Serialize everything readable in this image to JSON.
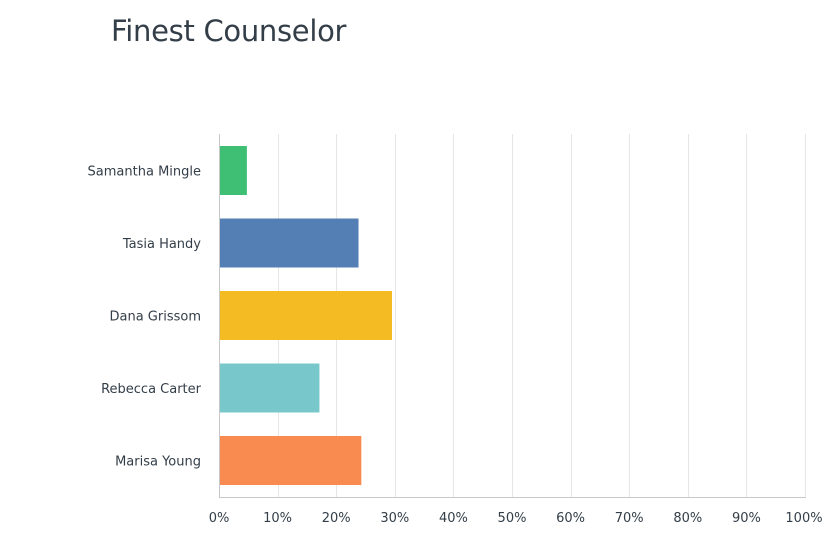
{
  "chart_data": {
    "type": "bar",
    "orientation": "horizontal",
    "title": "Finest Counselor",
    "categories": [
      "Samantha Mingle",
      "Tasia Handy",
      "Dana Grissom",
      "Rebecca Carter",
      "Marisa Young"
    ],
    "values": [
      4.76,
      23.81,
      29.52,
      17.14,
      24.29
    ],
    "colors": [
      "#3fbf74",
      "#537fb5",
      "#f5bb22",
      "#78c8cb",
      "#f98b50"
    ],
    "xlim": [
      0,
      100
    ],
    "xticks": [
      0,
      10,
      20,
      30,
      40,
      50,
      60,
      70,
      80,
      90,
      100
    ],
    "tick_suffix": "%",
    "grid": true
  }
}
